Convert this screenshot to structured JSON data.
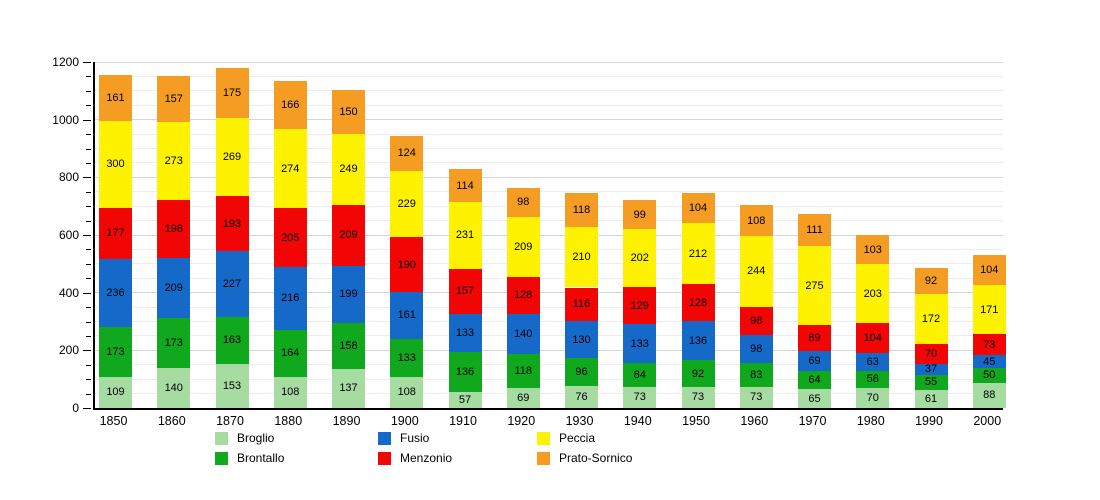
{
  "chart_data": {
    "type": "bar",
    "stacked": true,
    "title": "",
    "categories": [
      "1850",
      "1860",
      "1870",
      "1880",
      "1890",
      "1900",
      "1910",
      "1920",
      "1930",
      "1940",
      "1950",
      "1960",
      "1970",
      "1980",
      "1990",
      "2000"
    ],
    "series": [
      {
        "name": "Broglio",
        "color": "#A6DBA2",
        "values": [
          109,
          140,
          153,
          108,
          137,
          108,
          57,
          69,
          76,
          73,
          73,
          73,
          65,
          70,
          61,
          88
        ]
      },
      {
        "name": "Brontallo",
        "color": "#10A81C",
        "values": [
          173,
          173,
          163,
          164,
          158,
          133,
          136,
          118,
          96,
          84,
          92,
          83,
          64,
          58,
          55,
          50
        ]
      },
      {
        "name": "Fusio",
        "color": "#1569C9",
        "values": [
          236,
          209,
          227,
          216,
          199,
          161,
          133,
          140,
          130,
          133,
          136,
          98,
          69,
          63,
          37,
          45
        ]
      },
      {
        "name": "Menzonio",
        "color": "#F20505",
        "values": [
          177,
          198,
          193,
          205,
          209,
          190,
          157,
          128,
          116,
          129,
          128,
          98,
          89,
          104,
          70,
          73
        ]
      },
      {
        "name": "Peccia",
        "color": "#FFF200",
        "values": [
          300,
          273,
          269,
          274,
          249,
          229,
          231,
          209,
          210,
          202,
          212,
          244,
          275,
          203,
          172,
          171
        ]
      },
      {
        "name": "Prato-Sornico",
        "color": "#F59C23",
        "values": [
          161,
          157,
          175,
          166,
          150,
          124,
          114,
          98,
          118,
          99,
          104,
          108,
          111,
          103,
          92,
          104
        ]
      }
    ],
    "xlabel": "",
    "ylabel": "",
    "ylim": [
      0,
      1200
    ],
    "yticks_major": [
      0,
      200,
      400,
      600,
      800,
      1000,
      1200
    ],
    "ytick_minor_step": 50,
    "grid": true,
    "bar_value_labels": true,
    "legend_position": "bottom",
    "legend_columns": [
      [
        "Broglio",
        "Brontallo"
      ],
      [
        "Fusio",
        "Menzonio"
      ],
      [
        "Peccia",
        "Prato-Sornico"
      ]
    ]
  },
  "axis_text_color": "#000000",
  "gridline_minor_color": "#ececec",
  "gridline_major_color": "#d6d6d6"
}
